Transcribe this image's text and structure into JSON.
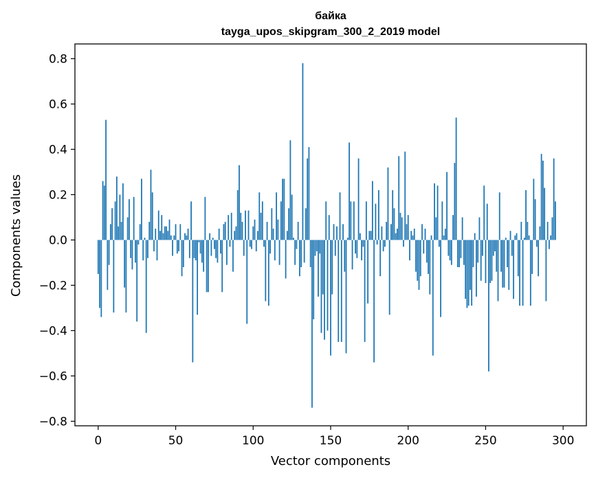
{
  "chart_data": {
    "type": "bar",
    "title_line1": "байка",
    "title_line2": "tayga_upos_skipgram_300_2_2019 model",
    "xlabel": "Vector components",
    "ylabel": "Components values",
    "xlim": [
      -15,
      315
    ],
    "ylim": [
      -0.82,
      0.865
    ],
    "x_ticks": [
      0,
      50,
      100,
      150,
      200,
      250,
      300
    ],
    "x_tick_labels": [
      "0",
      "50",
      "100",
      "150",
      "200",
      "250",
      "300"
    ],
    "y_ticks": [
      0.8,
      0.6,
      0.4,
      0.2,
      0.0,
      -0.2,
      -0.4,
      -0.6,
      -0.8
    ],
    "y_tick_labels": [
      "0.8",
      "0.6",
      "0.4",
      "0.2",
      "0.0",
      "−0.2",
      "−0.4",
      "−0.6",
      "−0.8"
    ],
    "bar_color": "#1f77b4",
    "values": [
      -0.15,
      -0.3,
      -0.34,
      0.26,
      0.24,
      0.53,
      -0.22,
      -0.11,
      0.07,
      0.14,
      -0.32,
      0.17,
      0.28,
      0.06,
      0.2,
      0.08,
      0.25,
      -0.21,
      -0.32,
      0.1,
      0.18,
      -0.08,
      -0.13,
      0.19,
      -0.1,
      -0.36,
      -0.02,
      0.07,
      0.27,
      -0.09,
      0.01,
      -0.41,
      -0.08,
      0.08,
      0.31,
      0.21,
      -0.05,
      0.05,
      -0.09,
      0.13,
      0.04,
      0.11,
      0.03,
      0.06,
      0.06,
      0.04,
      0.09,
      0.02,
      -0.07,
      0.02,
      0.07,
      -0.06,
      -0.05,
      0.07,
      -0.16,
      -0.12,
      0.03,
      0.02,
      0.05,
      -0.08,
      0.17,
      -0.54,
      -0.08,
      -0.09,
      -0.33,
      -0.01,
      -0.06,
      -0.1,
      -0.14,
      0.19,
      -0.23,
      -0.23,
      0.03,
      -0.07,
      0.01,
      -0.04,
      -0.08,
      -0.1,
      0.05,
      -0.06,
      -0.23,
      0.07,
      0.08,
      -0.11,
      0.11,
      -0.03,
      0.12,
      -0.14,
      0.04,
      0.06,
      0.22,
      0.33,
      0.12,
      0.08,
      -0.07,
      0.13,
      -0.37,
      0.13,
      -0.03,
      -0.04,
      0.06,
      0.09,
      -0.05,
      0.04,
      0.21,
      0.12,
      0.17,
      -0.03,
      -0.27,
      0.08,
      -0.29,
      -0.06,
      0.14,
      0.05,
      -0.09,
      0.21,
      0.09,
      -0.11,
      0.17,
      0.27,
      0.27,
      -0.17,
      0.04,
      0.14,
      0.44,
      0.2,
      0.01,
      -0.11,
      -0.04,
      0.08,
      -0.16,
      -0.12,
      0.78,
      -0.1,
      0.14,
      0.36,
      0.41,
      -0.12,
      -0.74,
      -0.35,
      -0.07,
      -0.05,
      -0.25,
      -0.06,
      -0.41,
      -0.24,
      -0.44,
      0.17,
      -0.4,
      0.11,
      -0.51,
      -0.24,
      0.07,
      -0.07,
      0.06,
      -0.45,
      0.21,
      -0.45,
      0.07,
      -0.14,
      -0.5,
      0.01,
      0.43,
      0.17,
      -0.13,
      0.17,
      -0.06,
      -0.08,
      0.36,
      0.03,
      -0.09,
      -0.03,
      -0.45,
      0.17,
      -0.28,
      0.04,
      0.04,
      0.26,
      -0.54,
      0.16,
      -0.02,
      0.22,
      -0.16,
      0.06,
      -0.05,
      -0.03,
      0.08,
      0.32,
      -0.33,
      0.07,
      0.22,
      0.14,
      0.03,
      0.05,
      0.37,
      0.12,
      0.1,
      -0.03,
      0.39,
      0.07,
      0.11,
      -0.09,
      0.04,
      0.02,
      0.05,
      -0.14,
      -0.18,
      -0.22,
      -0.16,
      0.07,
      -0.06,
      0.05,
      -0.1,
      -0.15,
      -0.24,
      0.02,
      -0.51,
      0.25,
      0.1,
      0.24,
      -0.03,
      -0.34,
      0.17,
      0.02,
      0.05,
      0.3,
      -0.07,
      -0.09,
      -0.11,
      0.11,
      0.34,
      0.54,
      -0.12,
      -0.12,
      -0.08,
      0.1,
      -0.11,
      -0.26,
      -0.3,
      -0.29,
      -0.22,
      -0.29,
      -0.12,
      0.03,
      -0.25,
      -0.1,
      0.1,
      -0.18,
      -0.07,
      0.24,
      -0.19,
      0.16,
      -0.58,
      -0.19,
      -0.18,
      -0.07,
      -0.05,
      -0.14,
      -0.27,
      0.21,
      -0.14,
      -0.21,
      -0.21,
      0.01,
      -0.12,
      -0.22,
      0.04,
      -0.07,
      -0.26,
      0.02,
      0.03,
      -0.16,
      -0.29,
      0.08,
      -0.29,
      0.01,
      0.22,
      0.08,
      0.02,
      -0.29,
      -0.15,
      0.27,
      0.18,
      -0.03,
      -0.16,
      0.06,
      0.38,
      0.35,
      0.23,
      -0.27,
      0.08,
      -0.04,
      0.02,
      0.1,
      0.36,
      0.17
    ]
  }
}
